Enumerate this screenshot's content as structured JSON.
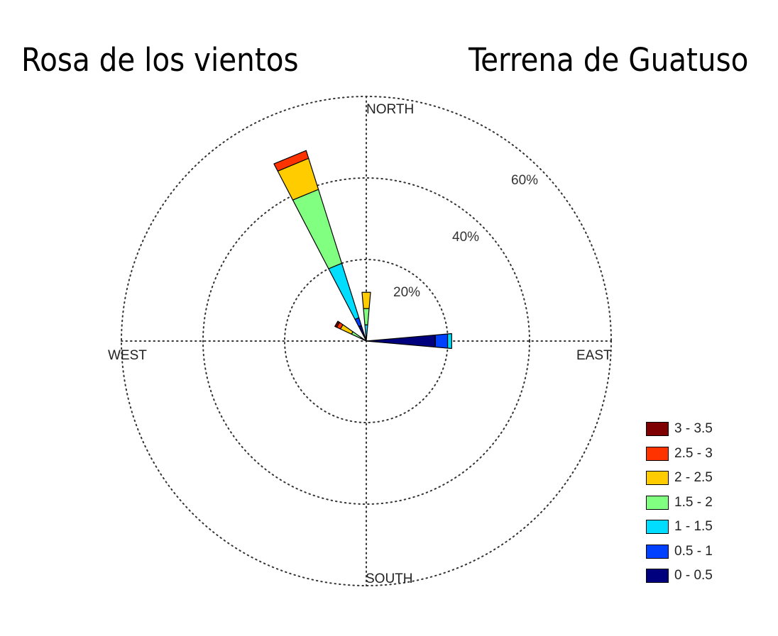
{
  "titles": {
    "left": "Rosa de los vientos",
    "right": "Terrena de Guatuso"
  },
  "chart_data": {
    "type": "wind-rose",
    "directions": {
      "north": "NORTH",
      "south": "SOUTH",
      "east": "EAST",
      "west": "WEST"
    },
    "rings": [
      {
        "value": 20,
        "label": "20%"
      },
      {
        "value": 40,
        "label": "40%"
      },
      {
        "value": 60,
        "label": "60%"
      }
    ],
    "rmax": 60,
    "bins": [
      {
        "label": "0 - 0.5",
        "color": "#00007f"
      },
      {
        "label": "0.5 - 1",
        "color": "#0040ff"
      },
      {
        "label": "1 - 1.5",
        "color": "#00ddff"
      },
      {
        "label": "1.5 - 2",
        "color": "#80ff80"
      },
      {
        "label": "2 - 2.5",
        "color": "#ffcc00"
      },
      {
        "label": "2.5 - 3",
        "color": "#ff3300"
      },
      {
        "label": "3 - 3.5",
        "color": "#7f0000"
      }
    ],
    "sectors": [
      {
        "direction_deg": 0,
        "cumulative": [
          0,
          1,
          4,
          8,
          12,
          12,
          12
        ]
      },
      {
        "direction_deg": 90,
        "cumulative": [
          17,
          20,
          21,
          21,
          21,
          21,
          21
        ]
      },
      {
        "direction_deg": 300,
        "cumulative": [
          0.5,
          1,
          1.5,
          4,
          7,
          8,
          8.5
        ]
      },
      {
        "direction_deg": 337.5,
        "cumulative": [
          4,
          6,
          20,
          39,
          47,
          49,
          49
        ]
      }
    ]
  }
}
